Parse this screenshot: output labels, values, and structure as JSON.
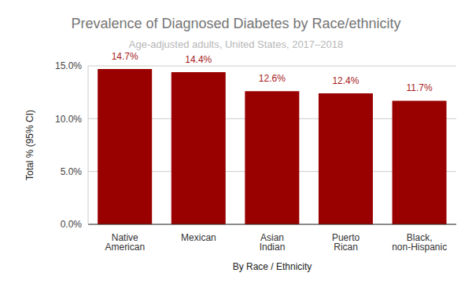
{
  "chart_data": {
    "type": "bar",
    "title": "Prevalence of Diagnosed Diabetes by Race/ethnicity",
    "subtitle": "Age-adjusted adults, United States, 2017–2018",
    "x_label": "By Race / Ethnicity",
    "y_label": "Total % (95% CI)",
    "categories": [
      "Native American",
      "Mexican",
      "Asian Indian",
      "Puerto Rican",
      "Black, non-Hispanic"
    ],
    "values": [
      14.7,
      14.4,
      12.6,
      12.4,
      11.7
    ],
    "value_labels": [
      "14.7%",
      "14.4%",
      "12.6%",
      "12.4%",
      "11.7%"
    ],
    "color": "#990000",
    "ylim": [
      0,
      15
    ],
    "yticks": [
      {
        "value": 0,
        "label": "0.0%"
      },
      {
        "value": 5,
        "label": "5.0%"
      },
      {
        "value": 10,
        "label": "10.0%"
      },
      {
        "value": 15,
        "label": "15.0%"
      }
    ],
    "grid": true,
    "data_labels": true
  }
}
